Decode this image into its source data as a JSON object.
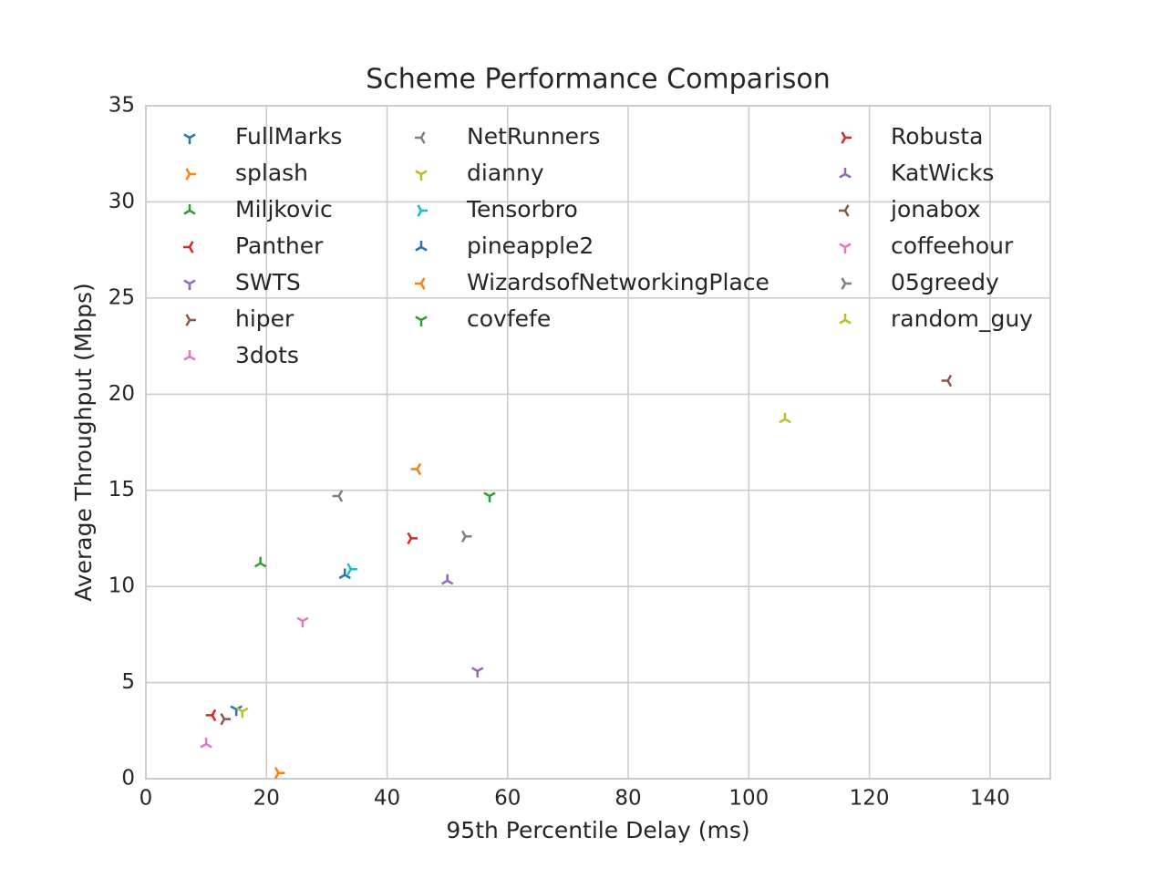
{
  "chart_data": {
    "type": "scatter",
    "title": "Scheme Performance Comparison",
    "x_label": "95th Percentile Delay (ms)",
    "y_label": "Average Throughput (Mbps)",
    "xlim": [
      0,
      150
    ],
    "ylim": [
      0,
      35
    ],
    "xticks": [
      0,
      20,
      40,
      60,
      80,
      100,
      120,
      140
    ],
    "yticks": [
      0,
      5,
      10,
      15,
      20,
      25,
      30,
      35
    ],
    "grid": true,
    "legend": "top",
    "series": [
      {
        "name": "FullMarks",
        "color": "#1f77b4",
        "x": [
          15
        ],
        "values": [
          3.6
        ]
      },
      {
        "name": "splash",
        "color": "#ff7f0e",
        "x": [
          22
        ],
        "values": [
          0.3
        ]
      },
      {
        "name": "Miljkovic",
        "color": "#2ca02c",
        "x": [
          19
        ],
        "values": [
          11.2
        ]
      },
      {
        "name": "Panther",
        "color": "#d62728",
        "x": [
          11
        ],
        "values": [
          3.3
        ]
      },
      {
        "name": "SWTS",
        "color": "#9467bd",
        "x": [
          55
        ],
        "values": [
          5.6
        ]
      },
      {
        "name": "hiper",
        "color": "#8c564b",
        "x": [
          13
        ],
        "values": [
          3.1
        ]
      },
      {
        "name": "3dots",
        "color": "#e377c2",
        "x": [
          10
        ],
        "values": [
          1.8
        ]
      },
      {
        "name": "NetRunners",
        "color": "#7f7f7f",
        "x": [
          32
        ],
        "values": [
          14.7
        ]
      },
      {
        "name": "dianny",
        "color": "#bcbd22",
        "x": [
          16
        ],
        "values": [
          3.5
        ]
      },
      {
        "name": "Tensorbro",
        "color": "#17becf",
        "x": [
          34
        ],
        "values": [
          10.9
        ]
      },
      {
        "name": "pineapple2",
        "color": "#1f77b4",
        "x": [
          33
        ],
        "values": [
          10.6
        ]
      },
      {
        "name": "WizardsofNetworkingPlace",
        "color": "#ff7f0e",
        "x": [
          45
        ],
        "values": [
          16.1
        ]
      },
      {
        "name": "covfefe",
        "color": "#2ca02c",
        "x": [
          57
        ],
        "values": [
          14.7
        ]
      },
      {
        "name": "Robusta",
        "color": "#d62728",
        "x": [
          44
        ],
        "values": [
          12.5
        ]
      },
      {
        "name": "KatWicks",
        "color": "#9467bd",
        "x": [
          50
        ],
        "values": [
          10.3
        ]
      },
      {
        "name": "jonabox",
        "color": "#8c564b",
        "x": [
          133
        ],
        "values": [
          20.7
        ]
      },
      {
        "name": "coffeehour",
        "color": "#e377c2",
        "x": [
          26
        ],
        "values": [
          8.2
        ]
      },
      {
        "name": "05greedy",
        "color": "#7f7f7f",
        "x": [
          53
        ],
        "values": [
          12.6
        ]
      },
      {
        "name": "random_guy",
        "color": "#bcbd22",
        "x": [
          106
        ],
        "values": [
          18.7
        ]
      }
    ]
  }
}
